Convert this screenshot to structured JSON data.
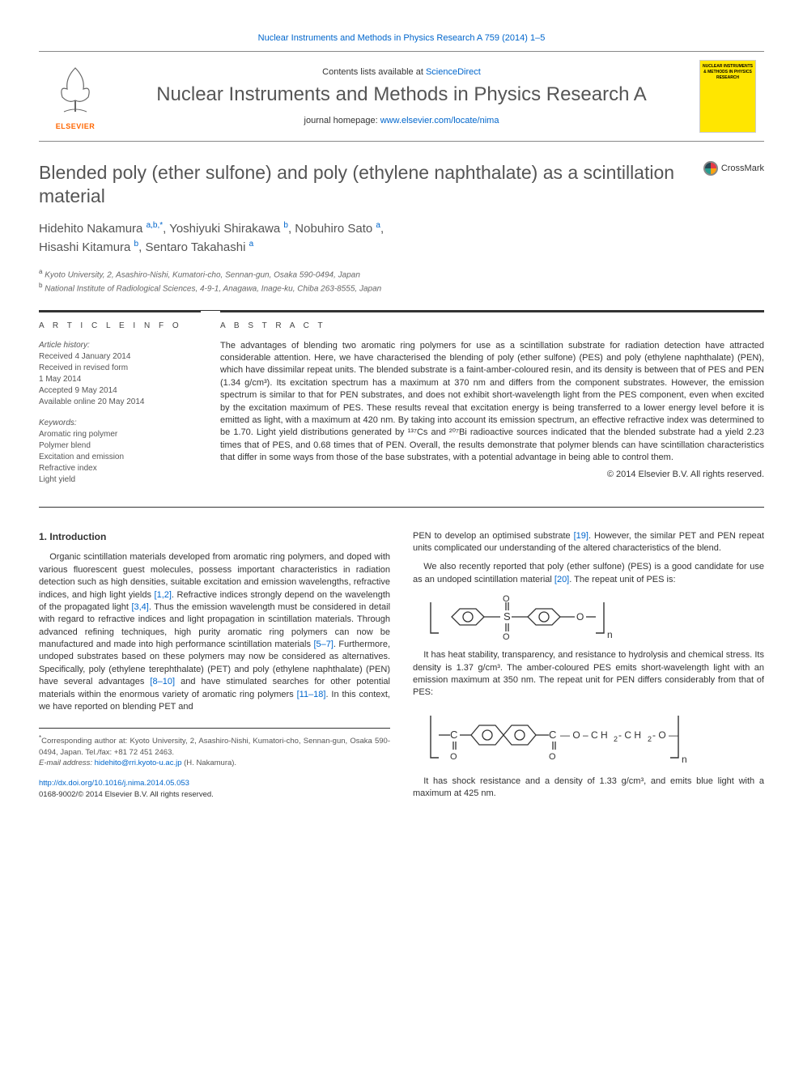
{
  "header": {
    "journal_full_ref": "Nuclear Instruments and Methods in Physics Research A 759 (2014) 1–5",
    "contents_prefix": "Contents lists available at ",
    "contents_link": "ScienceDirect",
    "journal_name": "Nuclear Instruments and Methods in Physics Research A",
    "homepage_prefix": "journal homepage: ",
    "homepage_url": "www.elsevier.com/locate/nima",
    "publisher_label": "ELSEVIER",
    "cover_text": "NUCLEAR INSTRUMENTS & METHODS IN PHYSICS RESEARCH",
    "cover_colors": {
      "background": "#ffe600",
      "border": "#cccccc"
    }
  },
  "crossmark_label": "CrossMark",
  "article": {
    "title": "Blended poly (ether sulfone) and poly (ethylene naphthalate) as a scintillation material",
    "authors_line1_html": "Hidehito Nakamura <sup>a,b,*</sup>, Yoshiyuki Shirakawa <sup>b</sup>, Nobuhiro Sato <sup>a</sup>,",
    "authors_line2_html": "Hisashi Kitamura <sup>b</sup>, Sentaro Takahashi <sup>a</sup>",
    "affiliations": {
      "a": "Kyoto University, 2, Asashiro-Nishi, Kumatori-cho, Sennan-gun, Osaka 590-0494, Japan",
      "b": "National Institute of Radiological Sciences, 4-9-1, Anagawa, Inage-ku, Chiba 263-8555, Japan"
    }
  },
  "info": {
    "heading": "A R T I C L E   I N F O",
    "history_label": "Article history:",
    "history": [
      "Received 4 January 2014",
      "Received in revised form",
      "1 May 2014",
      "Accepted 9 May 2014",
      "Available online 20 May 2014"
    ],
    "keywords_label": "Keywords:",
    "keywords": [
      "Aromatic ring polymer",
      "Polymer blend",
      "Excitation and emission",
      "Refractive index",
      "Light yield"
    ]
  },
  "abstract": {
    "heading": "A B S T R A C T",
    "text": "The advantages of blending two aromatic ring polymers for use as a scintillation substrate for radiation detection have attracted considerable attention. Here, we have characterised the blending of poly (ether sulfone) (PES) and poly (ethylene naphthalate) (PEN), which have dissimilar repeat units. The blended substrate is a faint-amber-coloured resin, and its density is between that of PES and PEN (1.34 g/cm³). Its excitation spectrum has a maximum at 370 nm and differs from the component substrates. However, the emission spectrum is similar to that for PEN substrates, and does not exhibit short-wavelength light from the PES component, even when excited by the excitation maximum of PES. These results reveal that excitation energy is being transferred to a lower energy level before it is emitted as light, with a maximum at 420 nm. By taking into account its emission spectrum, an effective refractive index was determined to be 1.70. Light yield distributions generated by ¹³⁷Cs and ²⁰⁷Bi radioactive sources indicated that the blended substrate had a yield 2.23 times that of PES, and 0.68 times that of PEN. Overall, the results demonstrate that polymer blends can have scintillation characteristics that differ in some ways from those of the base substrates, with a potential advantage in being able to control them.",
    "copyright": "© 2014 Elsevier B.V. All rights reserved."
  },
  "body": {
    "section_number": "1.",
    "section_title": "Introduction",
    "p1": "Organic scintillation materials developed from aromatic ring polymers, and doped with various fluorescent guest molecules, possess important characteristics in radiation detection such as high densities, suitable excitation and emission wavelengths, refractive indices, and high light yields ",
    "p1_ref": "[1,2]",
    "p1b": ". Refractive indices strongly depend on the wavelength of the propagated light ",
    "p1_ref2": "[3,4]",
    "p1c": ". Thus the emission wavelength must be considered in detail with regard to refractive indices and light propagation in scintillation materials. Through advanced refining techniques, high purity aromatic ring polymers can now be manufactured and made into high performance scintillation materials ",
    "p1_ref3": "[5–7]",
    "p1d": ". Furthermore, undoped substrates based on these polymers may now be considered as alternatives. Specifically, poly (ethylene terephthalate) (PET) and poly (ethylene naphthalate) (PEN) have several advantages ",
    "p1_ref4": "[8–10]",
    "p1e": " and have stimulated searches for other potential materials within the enormous variety of aromatic ring polymers ",
    "p1_ref5": "[11–18]",
    "p1f": ". In this context, we have reported on blending PET and",
    "p2": "PEN to develop an optimised substrate ",
    "p2_ref": "[19]",
    "p2b": ". However, the similar PET and PEN repeat units complicated our understanding of the altered characteristics of the blend.",
    "p3": "We also recently reported that poly (ether sulfone) (PES) is a good candidate for use as an undoped scintillation material ",
    "p3_ref": "[20]",
    "p3b": ". The repeat unit of PES is:",
    "p4": "It has heat stability, transparency, and resistance to hydrolysis and chemical stress. Its density is 1.37 g/cm³. The amber-coloured PES emits short-wavelength light with an emission maximum at 350 nm. The repeat unit for PEN differs considerably from that of PES:",
    "p5": "It has shock resistance and a density of 1.33 g/cm³, and emits blue light with a maximum at 425 nm."
  },
  "footnotes": {
    "corresponding": "Corresponding author at: Kyoto University, 2, Asashiro-Nishi, Kumatori-cho, Sennan-gun, Osaka 590-0494, Japan. Tel./fax: +81 72 451 2463.",
    "email_label": "E-mail address: ",
    "email": "hidehito@rri.kyoto-u.ac.jp",
    "email_owner": " (H. Nakamura).",
    "doi": "http://dx.doi.org/10.1016/j.nima.2014.05.053",
    "issn_line": "0168-9002/© 2014 Elsevier B.V. All rights reserved."
  },
  "colors": {
    "link": "#0066cc",
    "heading": "#555555",
    "rule": "#333333",
    "elsevier_orange": "#ff6600"
  }
}
